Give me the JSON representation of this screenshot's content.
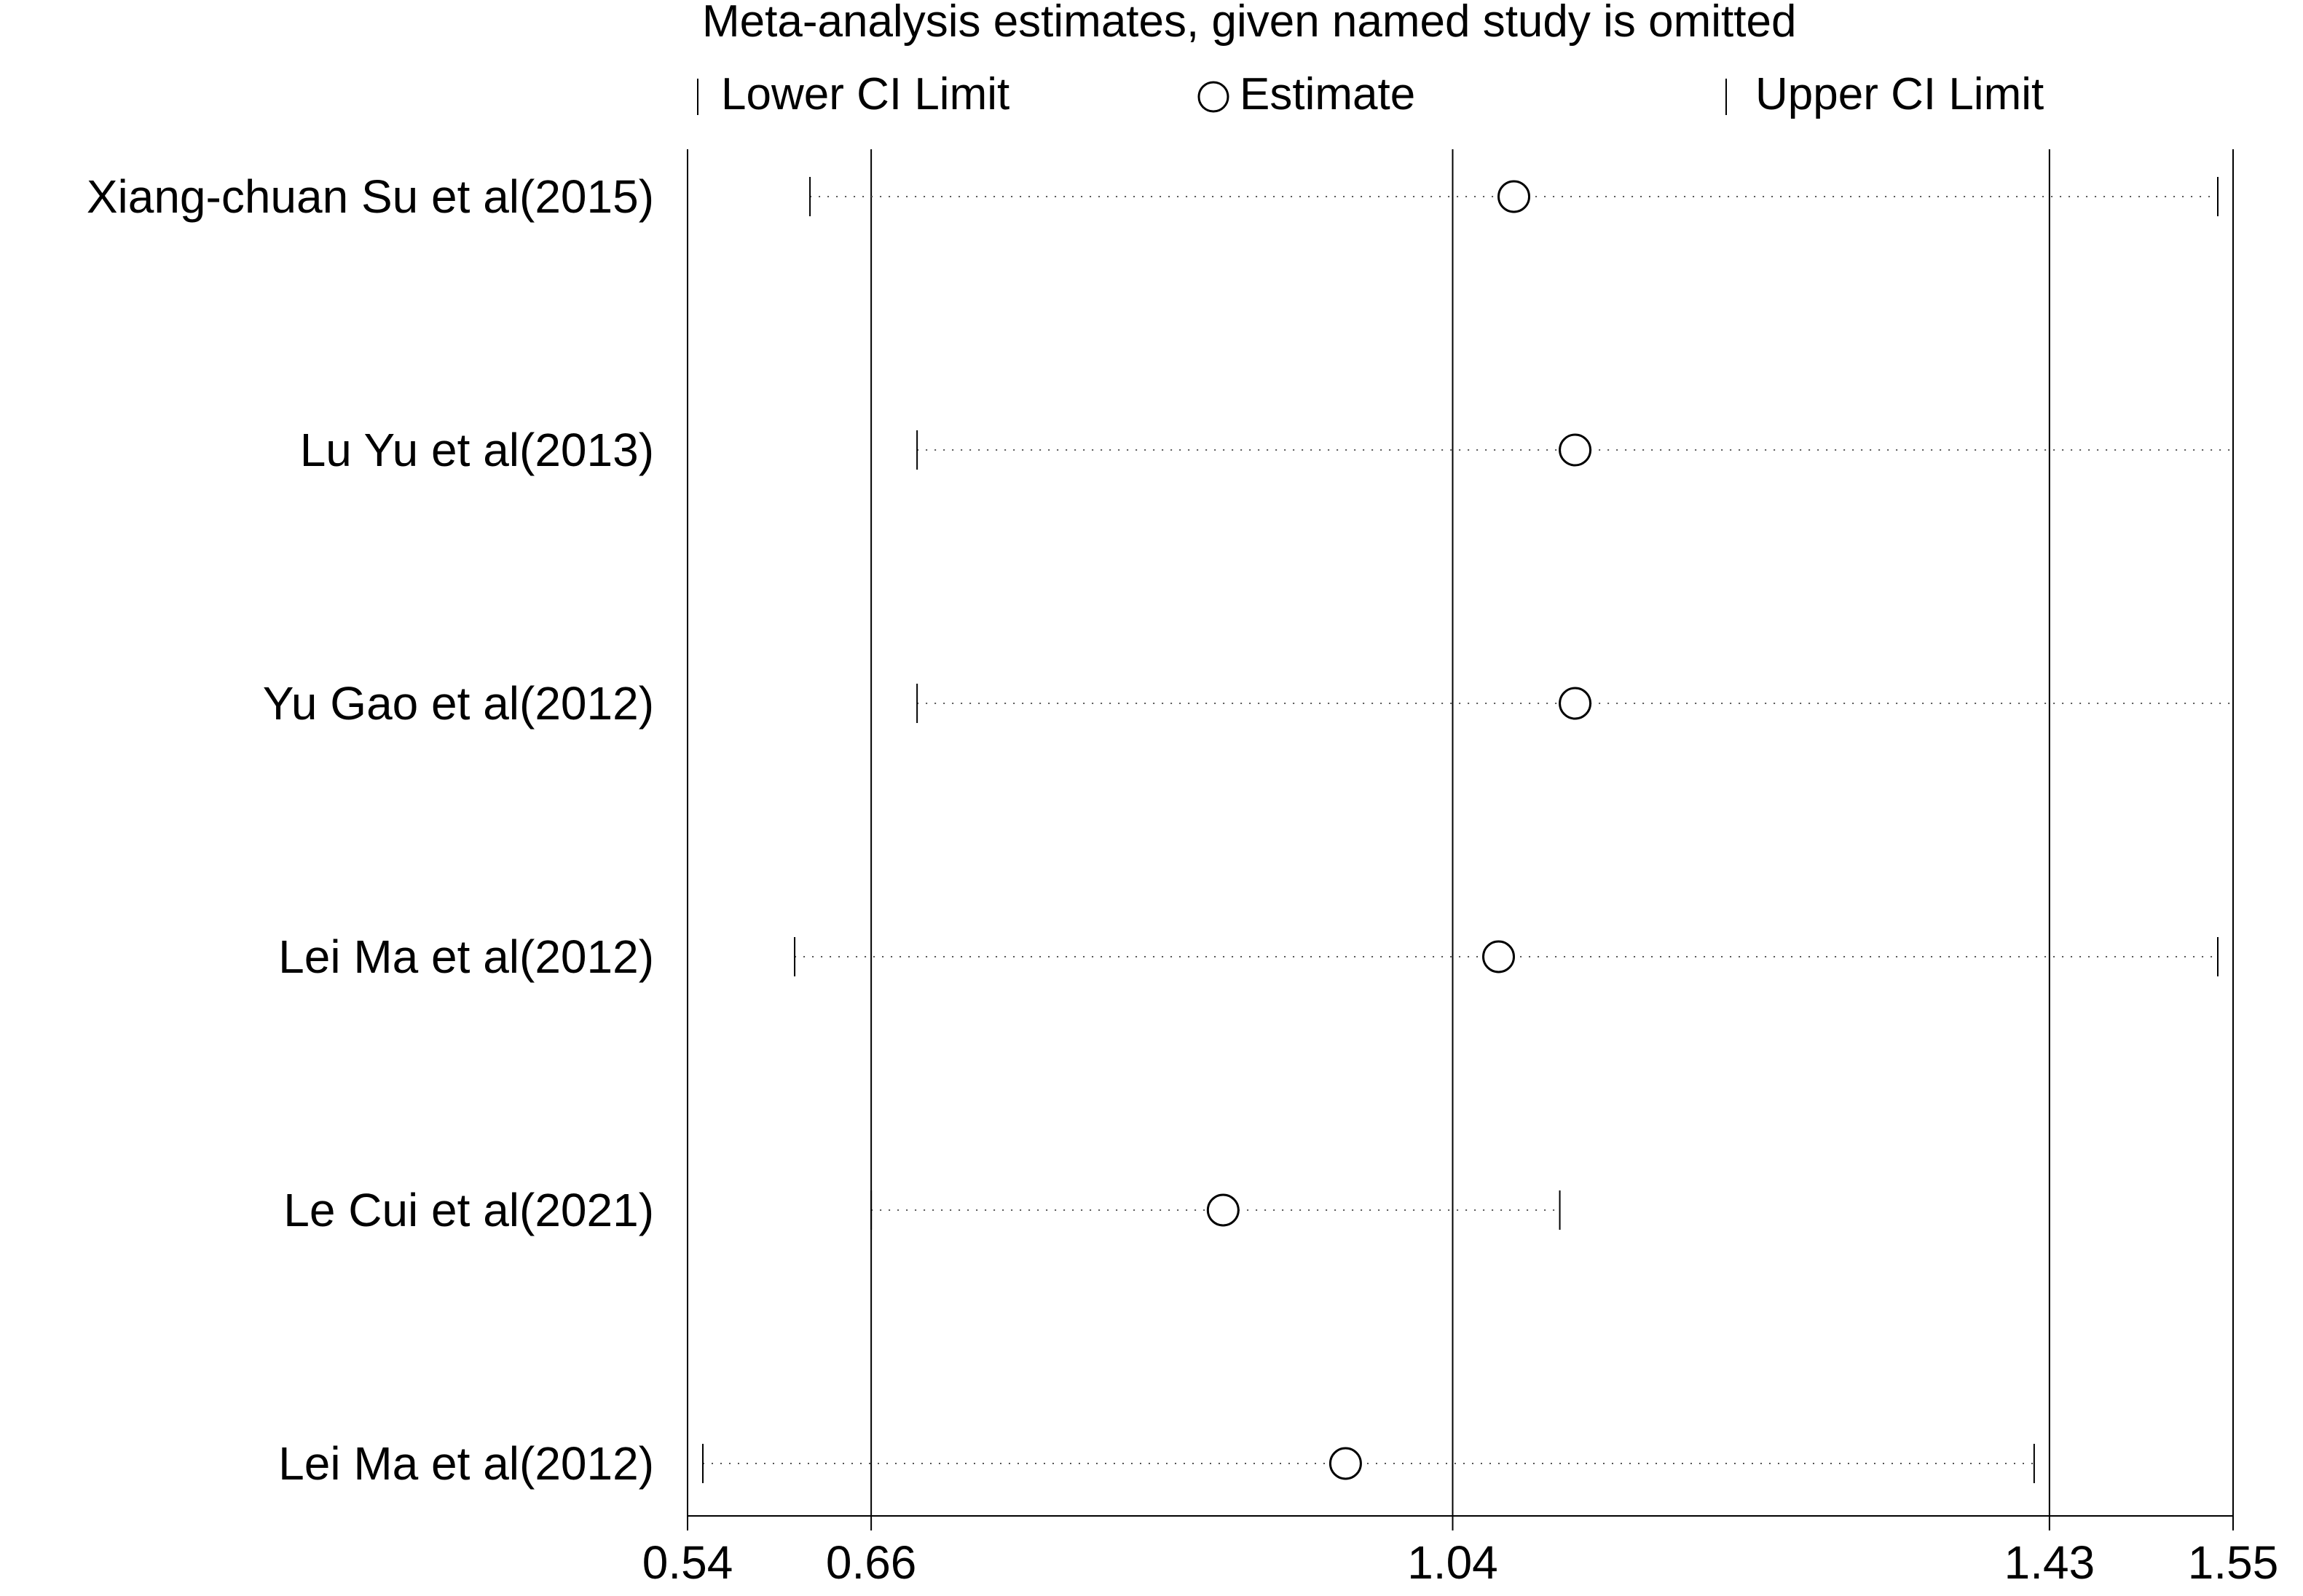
{
  "chart_data": {
    "type": "scatter",
    "title": "Meta-analysis estimates, given named study is omitted",
    "legend": {
      "placement": "top",
      "entries": [
        {
          "symbol": "tick",
          "label": "Lower CI Limit"
        },
        {
          "symbol": "circle",
          "label": "Estimate"
        },
        {
          "symbol": "tick",
          "label": "Upper CI Limit"
        }
      ]
    },
    "xlim": [
      0.54,
      1.55
    ],
    "x_ticks": [
      "0.54",
      "0.66",
      "1.04",
      "1.43",
      "1.55"
    ],
    "reference_lines": [
      0.66,
      1.04,
      1.43
    ],
    "categories": [
      "Xiang-chuan Su et al(2015)",
      "Lu Yu et al(2013)",
      "Yu Gao et al(2012)",
      "Lei Ma et al(2012)",
      "Le Cui et al(2021)",
      "Lei Ma et al(2012)"
    ],
    "series": [
      {
        "name": "Lower CI Limit",
        "values": [
          0.62,
          0.69,
          0.69,
          0.61,
          0.66,
          0.55
        ]
      },
      {
        "name": "Estimate",
        "values": [
          1.08,
          1.12,
          1.12,
          1.07,
          0.89,
          0.97
        ]
      },
      {
        "name": "Upper CI Limit",
        "values": [
          1.54,
          1.55,
          1.55,
          1.54,
          1.11,
          1.42
        ]
      }
    ],
    "grid": false
  }
}
